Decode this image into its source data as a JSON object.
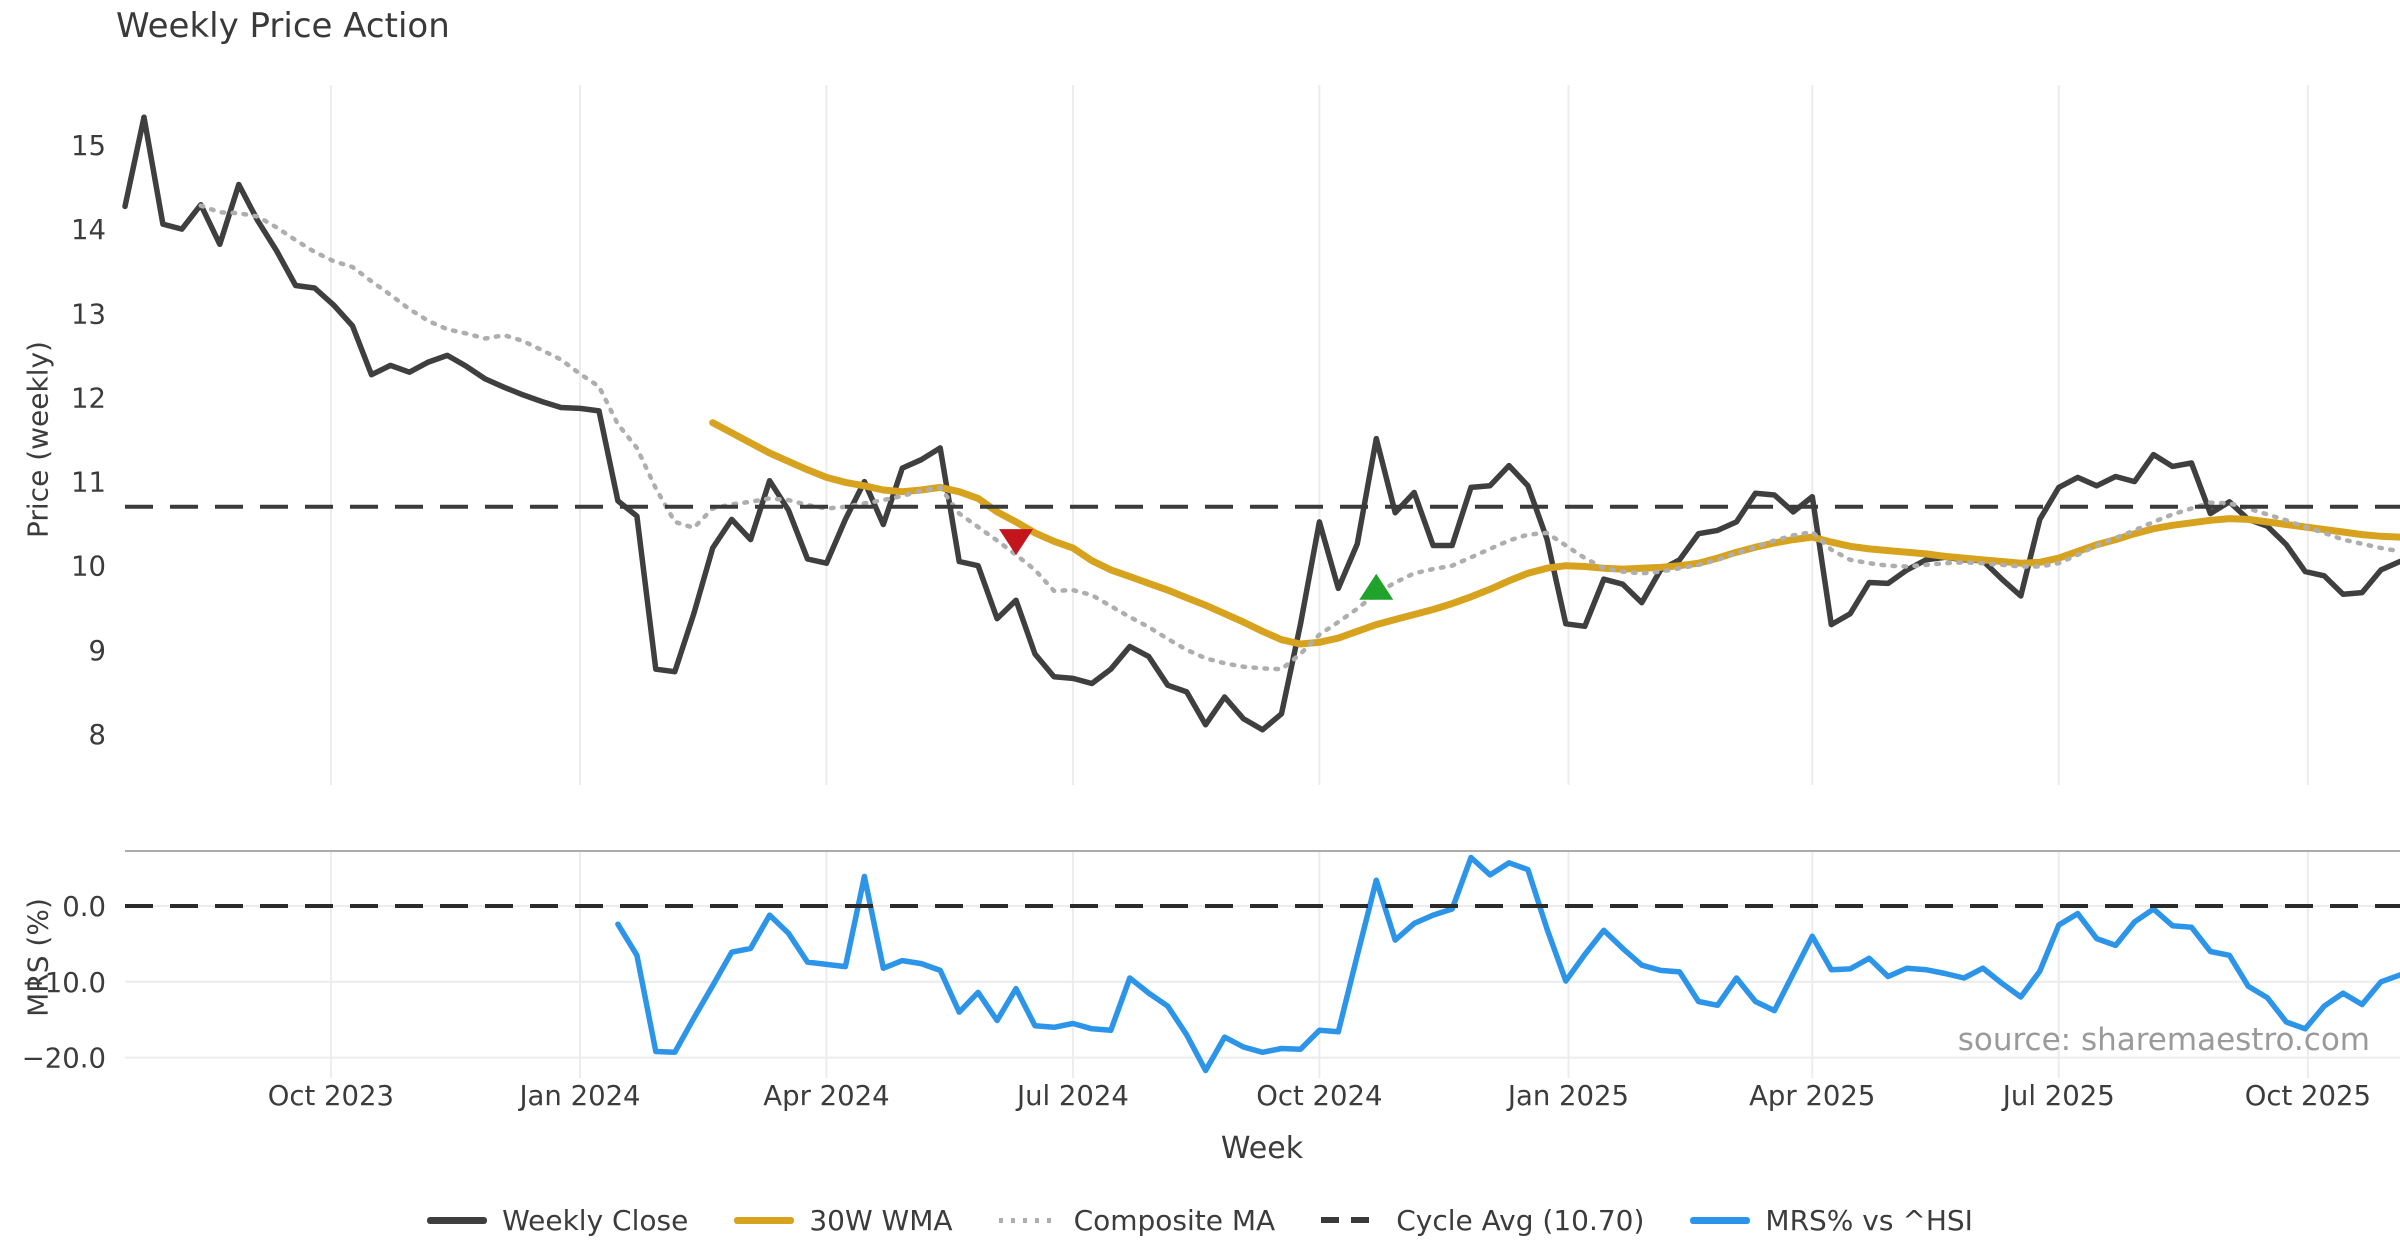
{
  "title": "Weekly Price Action",
  "source_note": "source: sharemaestro.com",
  "chart_data": {
    "type": "line",
    "xlabel": "Week",
    "start_date": "2023-07-17",
    "interval_days": 7,
    "num_weeks": 121,
    "xticks": [
      {
        "label": "Oct 2023",
        "week": 10.86
      },
      {
        "label": "Jan 2024",
        "week": 24
      },
      {
        "label": "Apr 2024",
        "week": 37
      },
      {
        "label": "Jul 2024",
        "week": 50
      },
      {
        "label": "Oct 2024",
        "week": 63
      },
      {
        "label": "Jan 2025",
        "week": 76.14
      },
      {
        "label": "Apr 2025",
        "week": 89
      },
      {
        "label": "Jul 2025",
        "week": 102
      },
      {
        "label": "Oct 2025",
        "week": 115.14
      }
    ],
    "panels": [
      {
        "ylabel": "Price (weekly)",
        "yticks": [
          15,
          14,
          13,
          12,
          11,
          10,
          9,
          8
        ],
        "ylim": [
          7.4,
          15.7
        ],
        "grid": "vertical-only"
      },
      {
        "ylabel": "MRS (%)",
        "yticks": [
          0.0,
          -10.0,
          -20.0
        ],
        "ytick_labels": [
          "0.0",
          "−10.0",
          "−20.0"
        ],
        "ylim": [
          -22.7,
          7.3
        ],
        "grid": "both"
      }
    ],
    "series": [
      {
        "name": "Weekly Close",
        "panel": 0,
        "style": "solid",
        "color": "#3f3f3f",
        "width": 5.5,
        "in_legend": true,
        "values": [
          14.27,
          15.33,
          14.06,
          14.0,
          14.29,
          13.82,
          14.53,
          14.1,
          13.74,
          13.33,
          13.3,
          13.1,
          12.85,
          12.27,
          12.38,
          12.3,
          12.42,
          12.5,
          12.37,
          12.22,
          12.12,
          12.03,
          11.95,
          11.88,
          11.87,
          11.84,
          10.77,
          10.59,
          8.77,
          8.74,
          9.43,
          10.21,
          10.55,
          10.31,
          11.01,
          10.66,
          10.08,
          10.03,
          10.55,
          11.0,
          10.49,
          11.16,
          11.26,
          11.4,
          10.05,
          10.0,
          9.37,
          9.59,
          8.95,
          8.68,
          8.66,
          8.6,
          8.77,
          9.04,
          8.92,
          8.58,
          8.5,
          8.11,
          8.44,
          8.18,
          8.05,
          8.24,
          9.3,
          10.52,
          9.73,
          10.26,
          11.51,
          10.63,
          10.87,
          10.24,
          10.24,
          10.93,
          10.95,
          11.19,
          10.95,
          10.32,
          9.31,
          9.28,
          9.84,
          9.78,
          9.56,
          9.95,
          10.07,
          10.38,
          10.42,
          10.52,
          10.86,
          10.84,
          10.64,
          10.82,
          9.3,
          9.43,
          9.8,
          9.79,
          9.95,
          10.07,
          10.1,
          10.07,
          10.06,
          9.84,
          9.64,
          10.55,
          10.93,
          11.05,
          10.95,
          11.06,
          11.0,
          11.32,
          11.18,
          11.22,
          10.62,
          10.76,
          10.55,
          10.47,
          10.25,
          9.93,
          9.88,
          9.66,
          9.68,
          9.95,
          10.05
        ]
      },
      {
        "name": "30W WMA",
        "panel": 0,
        "style": "solid",
        "color": "#d7a31e",
        "width": 7,
        "in_legend": true,
        "values": [
          null,
          null,
          null,
          null,
          null,
          null,
          null,
          null,
          null,
          null,
          null,
          null,
          null,
          null,
          null,
          null,
          null,
          null,
          null,
          null,
          null,
          null,
          null,
          null,
          null,
          null,
          null,
          null,
          null,
          null,
          null,
          11.7,
          11.58,
          11.46,
          11.34,
          11.24,
          11.14,
          11.05,
          10.99,
          10.95,
          10.9,
          10.88,
          10.9,
          10.93,
          10.88,
          10.8,
          10.64,
          10.52,
          10.39,
          10.29,
          10.21,
          10.06,
          9.95,
          9.87,
          9.79,
          9.71,
          9.62,
          9.53,
          9.43,
          9.33,
          9.22,
          9.12,
          9.07,
          9.09,
          9.14,
          9.22,
          9.3,
          9.36,
          9.42,
          9.48,
          9.55,
          9.63,
          9.72,
          9.82,
          9.91,
          9.97,
          10.0,
          9.99,
          9.97,
          9.96,
          9.97,
          9.98,
          10.0,
          10.03,
          10.09,
          10.16,
          10.22,
          10.27,
          10.31,
          10.34,
          10.28,
          10.23,
          10.2,
          10.18,
          10.16,
          10.14,
          10.11,
          10.09,
          10.07,
          10.05,
          10.03,
          10.04,
          10.09,
          10.17,
          10.25,
          10.31,
          10.38,
          10.44,
          10.48,
          10.51,
          10.54,
          10.56,
          10.55,
          10.52,
          10.49,
          10.46,
          10.43,
          10.4,
          10.37,
          10.35,
          10.34
        ]
      },
      {
        "name": "Composite MA",
        "panel": 0,
        "style": "dotted",
        "color": "#aeaeae",
        "width": 4.5,
        "in_legend": true,
        "values": [
          null,
          null,
          null,
          null,
          14.28,
          14.2,
          14.19,
          14.15,
          14.02,
          13.87,
          13.73,
          13.62,
          13.55,
          13.38,
          13.22,
          13.05,
          12.91,
          12.81,
          12.76,
          12.7,
          12.74,
          12.67,
          12.56,
          12.45,
          12.28,
          12.13,
          11.68,
          11.4,
          10.92,
          10.52,
          10.45,
          10.68,
          10.73,
          10.76,
          10.8,
          10.78,
          10.72,
          10.68,
          10.7,
          10.74,
          10.78,
          10.83,
          10.89,
          10.93,
          10.62,
          10.46,
          10.3,
          10.13,
          9.95,
          9.7,
          9.71,
          9.65,
          9.52,
          9.39,
          9.27,
          9.13,
          9.0,
          8.9,
          8.84,
          8.8,
          8.78,
          8.77,
          8.95,
          9.18,
          9.33,
          9.49,
          9.67,
          9.8,
          9.91,
          9.96,
          10.0,
          10.1,
          10.2,
          10.3,
          10.37,
          10.39,
          10.24,
          10.09,
          9.97,
          9.93,
          9.91,
          9.93,
          9.97,
          10.01,
          10.07,
          10.15,
          10.22,
          10.3,
          10.36,
          10.4,
          10.19,
          10.07,
          10.03,
          10.0,
          9.99,
          10.01,
          10.03,
          10.04,
          10.03,
          10.01,
          9.99,
          9.99,
          10.03,
          10.13,
          10.24,
          10.33,
          10.42,
          10.52,
          10.61,
          10.68,
          10.75,
          10.74,
          10.68,
          10.61,
          10.54,
          10.46,
          10.39,
          10.31,
          10.26,
          10.21,
          10.17
        ]
      },
      {
        "name": "Cycle Avg (10.70)",
        "panel": 0,
        "style": "dashed",
        "color": "#3a3a3a",
        "width": 4,
        "in_legend": true,
        "hline": 10.7
      },
      {
        "name": "MRS% vs ^HSI",
        "panel": 1,
        "style": "solid",
        "color": "#2c95e9",
        "width": 5.5,
        "in_legend": true,
        "values": [
          null,
          null,
          null,
          null,
          null,
          null,
          null,
          null,
          null,
          null,
          null,
          null,
          null,
          null,
          null,
          null,
          null,
          null,
          null,
          null,
          null,
          null,
          null,
          null,
          null,
          null,
          -2.4,
          -6.5,
          -19.2,
          -19.3,
          -14.8,
          -10.5,
          -6.1,
          -5.6,
          -1.2,
          -3.6,
          -7.4,
          -7.7,
          -8.0,
          3.9,
          -8.2,
          -7.2,
          -7.6,
          -8.5,
          -14.0,
          -11.4,
          -15.1,
          -10.9,
          -15.8,
          -16.0,
          -15.5,
          -16.2,
          -16.4,
          -9.5,
          -11.5,
          -13.2,
          -17.0,
          -21.7,
          -17.3,
          -18.6,
          -19.3,
          -18.8,
          -18.9,
          -16.4,
          -16.6,
          -6.5,
          3.4,
          -4.5,
          -2.3,
          -1.2,
          -0.4,
          6.4,
          4.1,
          5.7,
          4.8,
          -3.0,
          -9.9,
          -6.4,
          -3.2,
          -5.6,
          -7.8,
          -8.5,
          -8.7,
          -12.6,
          -13.1,
          -9.5,
          -12.6,
          -13.8,
          -8.9,
          -4.0,
          -8.4,
          -8.3,
          -6.9,
          -9.3,
          -8.2,
          -8.4,
          -8.9,
          -9.5,
          -8.2,
          -10.2,
          -12.0,
          -8.6,
          -2.5,
          -1.0,
          -4.3,
          -5.2,
          -2.1,
          -0.4,
          -2.6,
          -2.8,
          -6.0,
          -6.5,
          -10.6,
          -12.1,
          -15.3,
          -16.2,
          -13.2,
          -11.5,
          -13.0,
          -10.0,
          -9.1
        ]
      },
      {
        "name": "Zero Line",
        "panel": 1,
        "style": "dashed",
        "color": "#2b2b2b",
        "width": 4,
        "in_legend": false,
        "hline": 0.0
      }
    ],
    "markers": [
      {
        "type": "sell-signal",
        "shape": "triangle-down",
        "color": "#c2151c",
        "week": 47,
        "y": 10.28
      },
      {
        "type": "buy-signal",
        "shape": "triangle-up",
        "color": "#1fa32b",
        "week": 66,
        "y": 9.75
      }
    ],
    "legend_position": "bottom-center",
    "colors": {
      "grid": "#ececec",
      "panel_divider": "#acacac",
      "tick_text": "#3c3c3c",
      "source_text": "#9a9a9a"
    }
  }
}
